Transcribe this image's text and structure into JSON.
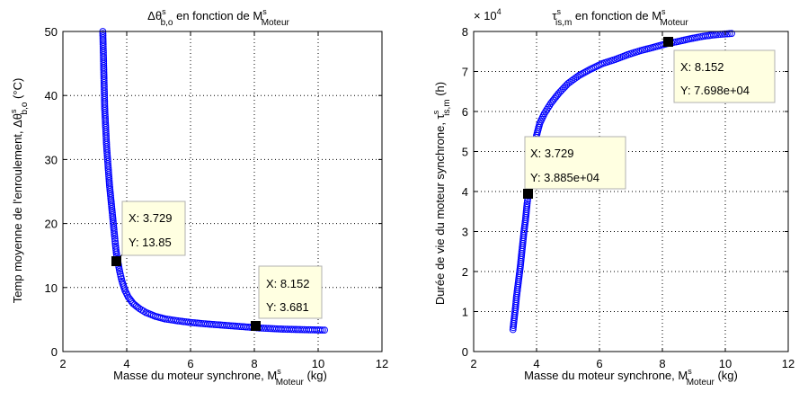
{
  "chart_data": [
    {
      "type": "scatter",
      "title": {
        "main": "Δθ",
        "sup": "s",
        "sub": "b,o",
        "mid": " en fonction de M",
        "sup2": "s",
        "sub2": "Moteur"
      },
      "xlabel": {
        "main": "Masse du moteur synchrone, M",
        "sup": "s",
        "sub": "Moteur",
        "end": " (kg)"
      },
      "ylabel": {
        "main": "Temp moyenne de l'enroulement, Δθ",
        "sup": "s",
        "sub": "b,o",
        "end": " (°C)"
      },
      "xlim": [
        2,
        12
      ],
      "ylim": [
        0,
        50
      ],
      "xticks": [
        "2",
        "4",
        "6",
        "8",
        "10",
        "12"
      ],
      "yticks": [
        "0",
        "10",
        "20",
        "30",
        "40",
        "50"
      ],
      "grid": true,
      "marker_color": "#0000ff",
      "marker": "circle",
      "series": [
        {
          "x": [
            3.25,
            3.26,
            3.27,
            3.28,
            3.29,
            3.3,
            3.31,
            3.33,
            3.35,
            3.37,
            3.4,
            3.43,
            3.46,
            3.5,
            3.54,
            3.58,
            3.62,
            3.65,
            3.68,
            3.7,
            3.729,
            3.78,
            3.85,
            3.95,
            4.05,
            4.2,
            4.4,
            4.6,
            4.9,
            5.2,
            5.6,
            6.0,
            6.4,
            6.8,
            7.2,
            7.6,
            8.0,
            8.152,
            8.5,
            8.9,
            9.3,
            9.7,
            10.2
          ],
          "y": [
            50,
            48,
            46,
            44,
            42,
            40,
            38,
            36,
            34,
            32,
            30,
            28,
            26,
            24,
            22,
            20,
            18,
            16.5,
            15.2,
            14.5,
            13.85,
            12.5,
            11.0,
            9.5,
            8.5,
            7.5,
            6.7,
            6.1,
            5.5,
            5.1,
            4.8,
            4.55,
            4.35,
            4.2,
            4.05,
            3.9,
            3.75,
            3.681,
            3.6,
            3.5,
            3.45,
            3.4,
            3.35
          ]
        }
      ],
      "datatips": [
        {
          "x_label": "X: 3.729",
          "y_label": "Y: 13.85",
          "x": 3.729,
          "y": 13.85
        },
        {
          "x_label": "X: 8.152",
          "y_label": "Y: 3.681",
          "x": 8.152,
          "y": 3.681
        }
      ]
    },
    {
      "type": "scatter",
      "title": {
        "main": "τ",
        "sup": "s",
        "sub": "is,m",
        "mid": " en fonction de M",
        "sup2": "s",
        "sub2": "Moteur"
      },
      "xlabel": {
        "main": "Masse du moteur synchrone, M",
        "sup": "s",
        "sub": "Moteur",
        "end": " (kg)"
      },
      "ylabel": {
        "main": "Durée de vie du moteur synchrone, τ",
        "sup": "s",
        "sub": "is,m",
        "end": " (h)"
      },
      "exponent_label": {
        "base": "× 10",
        "exp": "4"
      },
      "xlim": [
        2,
        12
      ],
      "ylim": [
        0,
        8
      ],
      "xticks": [
        "2",
        "4",
        "6",
        "8",
        "10",
        "12"
      ],
      "yticks": [
        "0",
        "1",
        "2",
        "3",
        "4",
        "5",
        "6",
        "7",
        "8"
      ],
      "grid": true,
      "marker_color": "#0000ff",
      "marker": "circle",
      "series": [
        {
          "x": [
            3.25,
            3.27,
            3.3,
            3.33,
            3.36,
            3.4,
            3.44,
            3.48,
            3.52,
            3.56,
            3.6,
            3.65,
            3.7,
            3.729,
            3.78,
            3.85,
            3.92,
            4.0,
            4.1,
            4.25,
            4.45,
            4.7,
            5.0,
            5.35,
            5.7,
            6.1,
            6.5,
            6.9,
            7.3,
            7.7,
            8.152,
            8.5,
            8.9,
            9.3,
            9.7,
            10.2
          ],
          "y": [
            0.55,
            0.7,
            0.9,
            1.1,
            1.35,
            1.6,
            1.85,
            2.1,
            2.4,
            2.7,
            3.0,
            3.3,
            3.7,
            3.885,
            4.3,
            4.7,
            5.05,
            5.4,
            5.7,
            5.95,
            6.2,
            6.45,
            6.7,
            6.9,
            7.05,
            7.2,
            7.3,
            7.42,
            7.52,
            7.6,
            7.698,
            7.75,
            7.82,
            7.88,
            7.92,
            7.95
          ]
        }
      ],
      "datatips": [
        {
          "x_label": "X: 3.729",
          "y_label": "Y: 3.885e+04",
          "x": 3.729,
          "y": 3.885
        },
        {
          "x_label": "X: 8.152",
          "y_label": "Y: 7.698e+04",
          "x": 8.152,
          "y": 7.698
        }
      ]
    }
  ]
}
